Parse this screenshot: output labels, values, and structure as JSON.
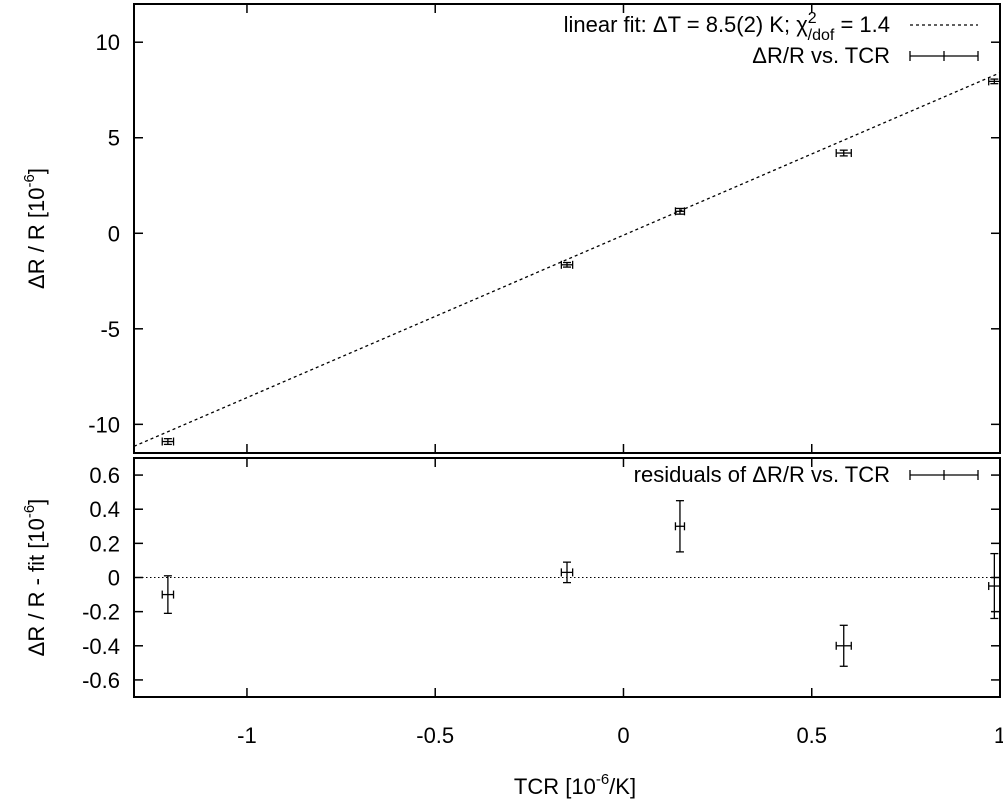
{
  "chart_data": [
    {
      "type": "scatter",
      "ylabel_main": "ΔR / R [10",
      "ylabel_exp": "-6",
      "ylabel_close": "]",
      "ylim": [
        -11.5,
        12
      ],
      "xlim": [
        -1.3,
        1.0
      ],
      "yticks": [
        -10,
        -5,
        0,
        5,
        10
      ],
      "yticklabels": [
        "-10",
        "-5",
        "0",
        "5",
        "10"
      ],
      "series": [
        {
          "name": "ΔR/R vs. TCR",
          "points": [
            {
              "x": -1.21,
              "y": -10.9,
              "xerr": 0.015,
              "yerr": 0.15
            },
            {
              "x": -0.15,
              "y": -1.65,
              "xerr": 0.015,
              "yerr": 0.12
            },
            {
              "x": 0.15,
              "y": 1.15,
              "xerr": 0.012,
              "yerr": 0.15
            },
            {
              "x": 0.585,
              "y": 4.2,
              "xerr": 0.02,
              "yerr": 0.15
            },
            {
              "x": 0.985,
              "y": 7.95,
              "xerr": 0.015,
              "yerr": 0.12
            }
          ]
        }
      ],
      "fit": {
        "label_prefix": "linear fit: ΔT = 8.5(2) K; χ",
        "label_sup": "2",
        "label_sub": "/dof",
        "label_suffix": " = 1.4",
        "slope": 8.5,
        "intercept": -0.1
      },
      "legend_position": "top-right"
    },
    {
      "type": "scatter",
      "ylabel_main": "ΔR / R - fit [10",
      "ylabel_exp": "-6",
      "ylabel_close": "]",
      "xlabel_main": "TCR [10",
      "xlabel_exp": "-6",
      "xlabel_close": "/K]",
      "ylim": [
        -0.7,
        0.7
      ],
      "xlim": [
        -1.3,
        1.0
      ],
      "yticks": [
        -0.6,
        -0.4,
        -0.2,
        0,
        0.2,
        0.4,
        0.6
      ],
      "yticklabels": [
        "-0.6",
        "-0.4",
        "-0.2",
        "0",
        "0.2",
        "0.4",
        "0.6"
      ],
      "xticks": [
        -1,
        -0.5,
        0,
        0.5,
        1
      ],
      "xticklabels": [
        "-1",
        "-0.5",
        "0",
        "0.5",
        "1"
      ],
      "series": [
        {
          "name": "residuals of ΔR/R vs. TCR",
          "points": [
            {
              "x": -1.21,
              "y": -0.1,
              "xerr": 0.015,
              "yerr": 0.11
            },
            {
              "x": -0.15,
              "y": 0.03,
              "xerr": 0.015,
              "yerr": 0.06
            },
            {
              "x": 0.15,
              "y": 0.3,
              "xerr": 0.012,
              "yerr": 0.15
            },
            {
              "x": 0.585,
              "y": -0.4,
              "xerr": 0.02,
              "yerr": 0.12
            },
            {
              "x": 0.985,
              "y": -0.05,
              "xerr": 0.015,
              "yerr": 0.19
            }
          ]
        }
      ],
      "zero_line": true,
      "legend_position": "top-right"
    }
  ]
}
